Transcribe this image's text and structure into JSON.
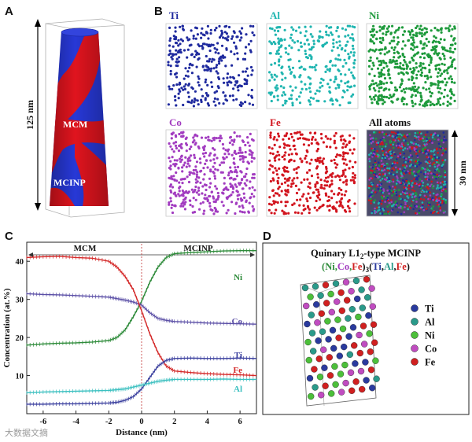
{
  "panels": {
    "a": "A",
    "b": "B",
    "c": "C",
    "d": "D"
  },
  "panel_a": {
    "height_label": "125 nm",
    "mcm_label": "MCM",
    "mcinp_label": "MCINP"
  },
  "panel_b": {
    "elements": [
      {
        "name": "Ti",
        "color": "#1f2a9e"
      },
      {
        "name": "Al",
        "color": "#1fb5b0"
      },
      {
        "name": "Ni",
        "color": "#1e9a3c"
      },
      {
        "name": "Co",
        "color": "#a23cc0"
      },
      {
        "name": "Fe",
        "color": "#d2141e"
      }
    ],
    "all_atoms_label": "All atoms",
    "scale_label": "30 nm"
  },
  "chart_data": {
    "type": "line",
    "region_labels": [
      "MCM",
      "MCINP"
    ],
    "xlabel": "Distance (nm)",
    "ylabel": "Concentration (at.%)",
    "xlim": [
      -7,
      7
    ],
    "ylim": [
      0,
      45
    ],
    "xticks": [
      -6,
      -4,
      -2,
      0,
      2,
      4,
      6
    ],
    "yticks": [
      10,
      20,
      30,
      40
    ],
    "series": [
      {
        "name": "Ni",
        "color": "#2e8b3a",
        "x": [
          -7,
          -6,
          -5,
          -4,
          -3,
          -2,
          -1.5,
          -1,
          -0.5,
          0,
          0.5,
          1,
          1.5,
          2,
          3,
          4,
          5,
          6,
          7
        ],
        "y": [
          18.0,
          18.3,
          18.5,
          18.6,
          18.8,
          19.2,
          20.0,
          22.0,
          25.5,
          29.5,
          34.5,
          38.5,
          41.0,
          42.0,
          42.3,
          42.5,
          42.7,
          42.8,
          42.8
        ]
      },
      {
        "name": "Co",
        "color": "#5b4fa6",
        "x": [
          -7,
          -6,
          -5,
          -4,
          -3,
          -2,
          -1.5,
          -1,
          -0.5,
          0,
          0.5,
          1,
          1.5,
          2,
          3,
          4,
          5,
          6,
          7
        ],
        "y": [
          31.5,
          31.3,
          31.2,
          31.0,
          30.8,
          30.6,
          30.2,
          29.8,
          29.3,
          28.5,
          26.5,
          25.0,
          24.5,
          24.2,
          24.0,
          23.8,
          23.7,
          23.6,
          23.5
        ]
      },
      {
        "name": "Fe",
        "color": "#d42a2a",
        "x": [
          -7,
          -6,
          -5,
          -4,
          -3,
          -2,
          -1.5,
          -1,
          -0.5,
          0,
          0.5,
          1,
          1.5,
          2,
          3,
          4,
          5,
          6,
          7
        ],
        "y": [
          41.0,
          41.2,
          41.3,
          41.0,
          40.8,
          40.0,
          38.5,
          36.0,
          32.5,
          27.0,
          21.0,
          16.0,
          12.5,
          11.2,
          10.8,
          10.5,
          10.3,
          10.2,
          10.0
        ]
      },
      {
        "name": "Ti",
        "color": "#3a3f9e",
        "x": [
          -7,
          -6,
          -5,
          -4,
          -3,
          -2,
          -1.5,
          -1,
          -0.5,
          0,
          0.5,
          1,
          1.5,
          2,
          3,
          4,
          5,
          6,
          7
        ],
        "y": [
          2.5,
          2.5,
          2.6,
          2.6,
          2.7,
          2.8,
          3.0,
          3.5,
          4.5,
          6.5,
          9.5,
          12.5,
          14.0,
          14.5,
          14.6,
          14.5,
          14.5,
          14.6,
          14.5
        ]
      },
      {
        "name": "Al",
        "color": "#3cc0c0",
        "x": [
          -7,
          -6,
          -5,
          -4,
          -3,
          -2,
          -1.5,
          -1,
          -0.5,
          0,
          0.5,
          1,
          1.5,
          2,
          3,
          4,
          5,
          6,
          7
        ],
        "y": [
          5.5,
          5.7,
          5.8,
          5.9,
          6.0,
          6.1,
          6.3,
          6.5,
          7.0,
          7.5,
          8.0,
          8.5,
          8.8,
          9.0,
          9.0,
          9.0,
          9.1,
          9.0,
          9.0
        ]
      }
    ]
  },
  "panel_d": {
    "title": "Quinary L1",
    "title_sub": "2",
    "title_rest": "-type MCINP",
    "formula": {
      "p1": "(Ni,",
      "co": "Co",
      "p2": ",",
      "fe": "Fe",
      "p3": ")",
      "sub3": "3",
      "p4": "(",
      "ti": "Ti",
      "p5": ",",
      "al": "Al",
      "p6": ",",
      "fe2": "Fe",
      "p7": ")"
    },
    "legend": [
      {
        "name": "Ti",
        "color": "#2a3a9e"
      },
      {
        "name": "Al",
        "color": "#2a9a8a"
      },
      {
        "name": "Ni",
        "color": "#4cbf3a"
      },
      {
        "name": "Co",
        "color": "#c04cc0"
      },
      {
        "name": "Fe",
        "color": "#d02020"
      }
    ]
  },
  "watermark": "大数据文摘"
}
